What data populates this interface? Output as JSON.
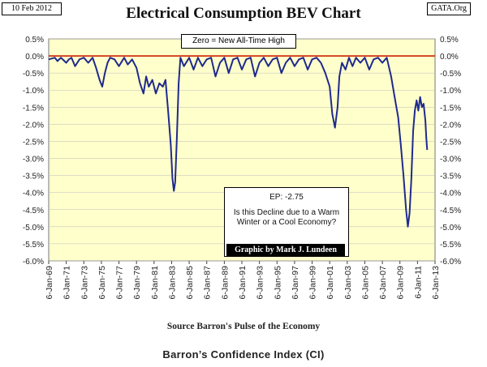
{
  "header": {
    "date": "10 Feb 2012",
    "site": "GATA.Org"
  },
  "caption": "Barron’s Confidence Index (CI)",
  "annotations": {
    "zero_note": "Zero = New All-Time High",
    "ep_value": "EP: -2.75",
    "question": "Is this Decline due to a Warm Winter or a Cool Economy?",
    "credit": "Graphic by Mark J. Lundeen",
    "source": "Source Barron's Pulse of the Economy"
  },
  "colors": {
    "plot_background": "#FFFFCC",
    "series_line": "#1F2A8C",
    "zero_line": "#CC2200",
    "grid": "#BBBBBB"
  },
  "chart_data": {
    "type": "line",
    "title": "Electrical Consumption BEV Chart",
    "xlabel": "",
    "ylabel": "",
    "xlim": [
      1969,
      2013
    ],
    "ylim": [
      -6.0,
      0.5
    ],
    "y_ticks": [
      "0.5%",
      "0.0%",
      "-0.5%",
      "-1.0%",
      "-1.5%",
      "-2.0%",
      "-2.5%",
      "-3.0%",
      "-3.5%",
      "-4.0%",
      "-4.5%",
      "-5.0%",
      "-5.5%",
      "-6.0%"
    ],
    "x_ticks": [
      "6-Jan-69",
      "6-Jan-71",
      "6-Jan-73",
      "6-Jan-75",
      "6-Jan-77",
      "6-Jan-79",
      "6-Jan-81",
      "6-Jan-83",
      "6-Jan-85",
      "6-Jan-87",
      "6-Jan-89",
      "6-Jan-91",
      "6-Jan-93",
      "6-Jan-95",
      "6-Jan-97",
      "6-Jan-99",
      "6-Jan-01",
      "6-Jan-03",
      "6-Jan-05",
      "6-Jan-07",
      "6-Jan-09",
      "6-Jan-11",
      "6-Jan-13"
    ],
    "grid": true,
    "series": [
      {
        "x": [
          1969.0,
          1969.7,
          1970.0,
          1970.4,
          1971.0,
          1971.3,
          1971.6,
          1972.0,
          1972.5,
          1973.0,
          1973.5,
          1974.0,
          1974.4,
          1974.8,
          1975.1,
          1975.4,
          1975.7,
          1976.0,
          1976.5,
          1977.0,
          1977.6,
          1978.0,
          1978.5,
          1979.0,
          1979.4,
          1979.8,
          1980.1,
          1980.4,
          1980.8,
          1981.2,
          1981.6,
          1982.0,
          1982.3,
          1982.6,
          1982.9,
          1983.1,
          1983.25,
          1983.4,
          1983.6,
          1983.8,
          1984.0,
          1984.4,
          1985.0,
          1985.5,
          1986.0,
          1986.5,
          1987.0,
          1987.5,
          1988.0,
          1988.5,
          1989.0,
          1989.5,
          1990.0,
          1990.5,
          1991.0,
          1991.5,
          1992.0,
          1992.5,
          1993.0,
          1993.5,
          1994.0,
          1994.5,
          1995.0,
          1995.5,
          1996.0,
          1996.5,
          1997.0,
          1997.5,
          1998.0,
          1998.5,
          1999.0,
          1999.5,
          2000.0,
          2000.5,
          2001.0,
          2001.3,
          2001.6,
          2001.9,
          2002.1,
          2002.4,
          2002.8,
          2003.2,
          2003.6,
          2004.0,
          2004.5,
          2005.0,
          2005.5,
          2006.0,
          2006.5,
          2007.0,
          2007.5,
          2008.0,
          2008.4,
          2008.8,
          2009.1,
          2009.4,
          2009.7,
          2009.9,
          2010.1,
          2010.3,
          2010.5,
          2010.7,
          2010.9,
          2011.1,
          2011.3,
          2011.5,
          2011.7,
          2011.9,
          2012.0,
          2012.1
        ],
        "y": [
          -0.1,
          -0.05,
          -0.15,
          -0.05,
          -0.2,
          -0.1,
          -0.05,
          -0.3,
          -0.1,
          -0.05,
          -0.2,
          -0.05,
          -0.35,
          -0.7,
          -0.9,
          -0.5,
          -0.2,
          -0.05,
          -0.1,
          -0.3,
          -0.05,
          -0.25,
          -0.1,
          -0.35,
          -0.8,
          -1.1,
          -0.6,
          -0.9,
          -0.7,
          -1.1,
          -0.8,
          -0.9,
          -0.7,
          -1.6,
          -2.6,
          -3.6,
          -3.95,
          -3.7,
          -2.4,
          -0.8,
          -0.05,
          -0.3,
          -0.05,
          -0.4,
          -0.05,
          -0.3,
          -0.1,
          -0.05,
          -0.6,
          -0.2,
          -0.05,
          -0.5,
          -0.1,
          -0.05,
          -0.4,
          -0.1,
          -0.05,
          -0.6,
          -0.2,
          -0.05,
          -0.3,
          -0.1,
          -0.05,
          -0.5,
          -0.2,
          -0.05,
          -0.3,
          -0.1,
          -0.05,
          -0.4,
          -0.1,
          -0.05,
          -0.2,
          -0.5,
          -0.9,
          -1.7,
          -2.1,
          -1.5,
          -0.6,
          -0.2,
          -0.4,
          -0.05,
          -0.3,
          -0.05,
          -0.2,
          -0.05,
          -0.4,
          -0.1,
          -0.05,
          -0.2,
          -0.05,
          -0.6,
          -1.2,
          -1.8,
          -2.6,
          -3.5,
          -4.5,
          -5.0,
          -4.6,
          -3.6,
          -2.2,
          -1.6,
          -1.3,
          -1.6,
          -1.2,
          -1.5,
          -1.4,
          -1.9,
          -2.4,
          -2.75
        ]
      }
    ]
  }
}
